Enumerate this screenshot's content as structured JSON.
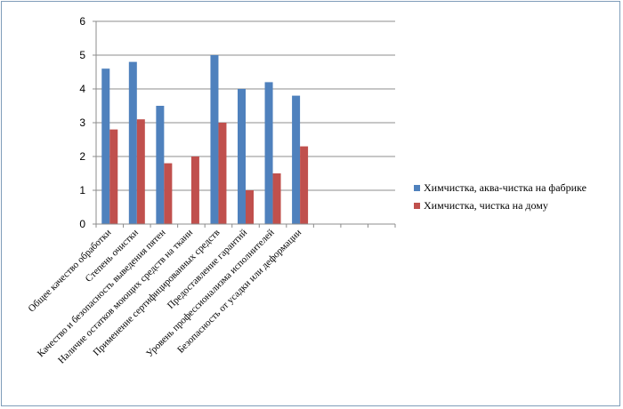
{
  "chart_data": {
    "type": "bar",
    "title": "",
    "xlabel": "",
    "ylabel": "",
    "ylim": [
      0,
      6
    ],
    "yticks": [
      0,
      1,
      2,
      3,
      4,
      5,
      6
    ],
    "grid": true,
    "legend_position": "right",
    "categories": [
      "Общее качество обработки",
      "Степень очистки",
      "Качество и безопасность выведения пятен",
      "Наличие остатков моющих средств на ткани",
      "Применение сертифицированных средств",
      "Предоставление гарантий",
      "Уровень профессионализма исполнителей",
      "Безопасность от усадки или деформации",
      "",
      "",
      ""
    ],
    "series": [
      {
        "name": "Химчистка, аква-чистка на фабрике",
        "color": "#4f81bd",
        "values": [
          4.6,
          4.8,
          3.5,
          null,
          5.0,
          4.0,
          4.2,
          3.8,
          null,
          null,
          null
        ]
      },
      {
        "name": "Химчистка, чистка на дому",
        "color": "#c0504d",
        "values": [
          2.8,
          3.1,
          1.8,
          2.0,
          3.0,
          1.0,
          1.5,
          2.3,
          null,
          null,
          null
        ]
      }
    ]
  }
}
